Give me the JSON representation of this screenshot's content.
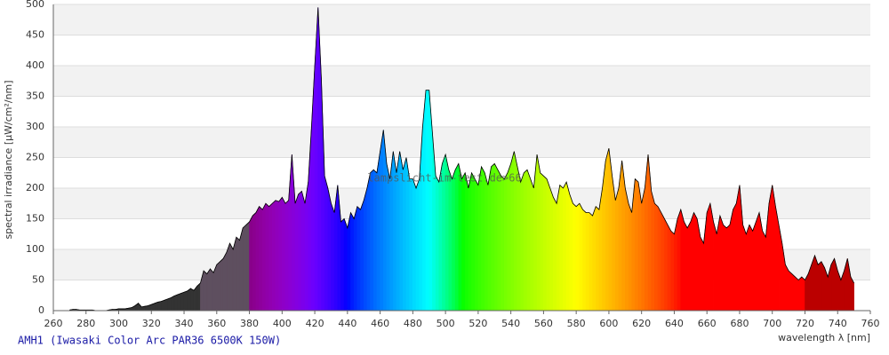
{
  "chart_data": {
    "type": "spectrum",
    "title": "AMH1 (Iwasaki Color Arc PAR36 6500K 150W)",
    "watermark": "lampslicht-im-test.de>66",
    "x_label": "wavelength λ [nm]",
    "y_label": "spectral irradiance [µW/cm²/nm]",
    "xlim": [
      260,
      760
    ],
    "ylim": [
      0,
      500
    ],
    "xticks": [
      260,
      280,
      300,
      320,
      340,
      360,
      380,
      400,
      420,
      440,
      460,
      480,
      500,
      520,
      540,
      560,
      580,
      600,
      620,
      640,
      660,
      680,
      700,
      720,
      740,
      760
    ],
    "yticks": [
      0,
      50,
      100,
      150,
      200,
      250,
      300,
      350,
      400,
      450,
      500
    ],
    "grid": true,
    "x": [
      270,
      272,
      274,
      276,
      278,
      280,
      282,
      284,
      286,
      288,
      290,
      292,
      294,
      296,
      298,
      300,
      302,
      304,
      306,
      308,
      310,
      312,
      314,
      316,
      318,
      320,
      322,
      324,
      326,
      328,
      330,
      332,
      334,
      336,
      338,
      340,
      342,
      344,
      346,
      348,
      350,
      352,
      354,
      356,
      358,
      360,
      362,
      364,
      366,
      368,
      370,
      372,
      374,
      376,
      378,
      380,
      382,
      384,
      386,
      388,
      390,
      392,
      394,
      396,
      398,
      400,
      402,
      404,
      406,
      408,
      410,
      412,
      414,
      416,
      418,
      420,
      422,
      424,
      426,
      428,
      430,
      432,
      434,
      436,
      438,
      440,
      442,
      444,
      446,
      448,
      450,
      452,
      454,
      456,
      458,
      460,
      462,
      464,
      466,
      468,
      470,
      472,
      474,
      476,
      478,
      480,
      482,
      484,
      486,
      488,
      490,
      492,
      494,
      496,
      498,
      500,
      502,
      504,
      506,
      508,
      510,
      512,
      514,
      516,
      518,
      520,
      522,
      524,
      526,
      528,
      530,
      532,
      534,
      536,
      538,
      540,
      542,
      544,
      546,
      548,
      550,
      552,
      554,
      556,
      558,
      560,
      562,
      564,
      566,
      568,
      570,
      572,
      574,
      576,
      578,
      580,
      582,
      584,
      586,
      588,
      590,
      592,
      594,
      596,
      598,
      600,
      602,
      604,
      606,
      608,
      610,
      612,
      614,
      616,
      618,
      620,
      622,
      624,
      626,
      628,
      630,
      632,
      634,
      636,
      638,
      640,
      642,
      644,
      646,
      648,
      650,
      652,
      654,
      656,
      658,
      660,
      662,
      664,
      666,
      668,
      670,
      672,
      674,
      676,
      678,
      680,
      682,
      684,
      686,
      688,
      690,
      692,
      694,
      696,
      698,
      700,
      702,
      704,
      706,
      708,
      710,
      712,
      714,
      716,
      718,
      720,
      722,
      724,
      726,
      728,
      730,
      732,
      734,
      736,
      738,
      740,
      742,
      744,
      746,
      748,
      750
    ],
    "values": [
      1,
      2,
      2,
      1,
      1,
      1,
      1,
      1,
      0,
      0,
      0,
      0,
      1,
      2,
      2,
      3,
      3,
      3,
      4,
      5,
      8,
      12,
      6,
      7,
      8,
      10,
      12,
      14,
      15,
      17,
      19,
      21,
      24,
      26,
      28,
      30,
      32,
      36,
      33,
      40,
      45,
      65,
      60,
      68,
      62,
      75,
      80,
      85,
      95,
      110,
      100,
      120,
      115,
      135,
      140,
      145,
      155,
      160,
      170,
      165,
      175,
      170,
      175,
      180,
      178,
      185,
      175,
      180,
      255,
      175,
      190,
      195,
      175,
      210,
      300,
      400,
      495,
      380,
      220,
      200,
      175,
      160,
      205,
      145,
      150,
      135,
      160,
      150,
      170,
      165,
      180,
      200,
      225,
      230,
      225,
      260,
      295,
      240,
      215,
      260,
      225,
      260,
      230,
      250,
      215,
      215,
      200,
      215,
      300,
      360,
      360,
      290,
      220,
      210,
      240,
      255,
      230,
      215,
      230,
      240,
      215,
      225,
      200,
      225,
      215,
      205,
      235,
      225,
      205,
      235,
      240,
      230,
      220,
      215,
      225,
      240,
      260,
      235,
      210,
      225,
      230,
      215,
      200,
      255,
      225,
      220,
      215,
      200,
      185,
      175,
      205,
      200,
      210,
      190,
      175,
      170,
      175,
      165,
      160,
      160,
      155,
      170,
      165,
      200,
      245,
      265,
      220,
      180,
      200,
      245,
      200,
      175,
      160,
      215,
      210,
      175,
      200,
      255,
      195,
      175,
      170,
      160,
      150,
      140,
      130,
      125,
      150,
      165,
      145,
      135,
      145,
      160,
      150,
      120,
      110,
      160,
      175,
      145,
      125,
      155,
      140,
      135,
      140,
      165,
      175,
      205,
      140,
      125,
      140,
      130,
      145,
      160,
      130,
      120,
      175,
      205,
      170,
      140,
      110,
      75,
      65,
      60,
      55,
      50,
      55,
      50,
      60,
      75,
      90,
      75,
      80,
      70,
      55,
      75,
      85,
      65,
      50,
      65,
      85,
      55,
      45
    ]
  }
}
